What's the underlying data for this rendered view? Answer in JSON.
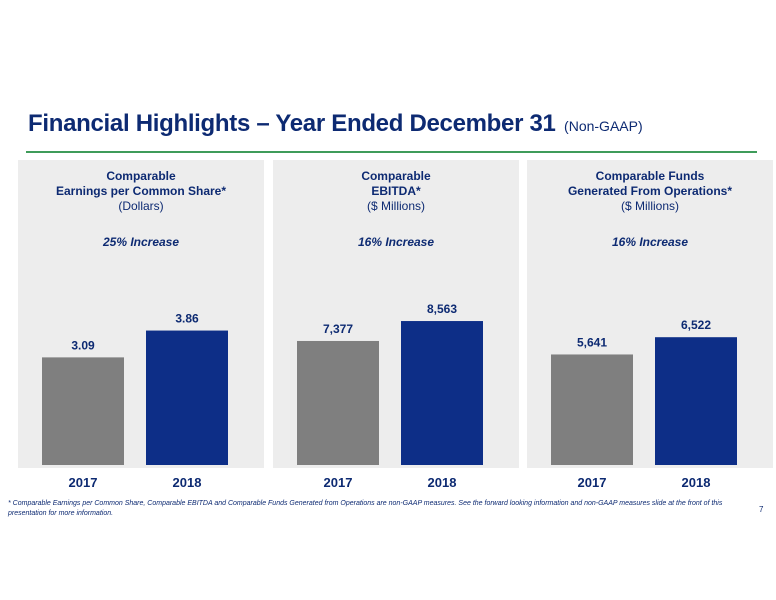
{
  "title": {
    "main": "Financial Highlights – Year Ended December 31",
    "sub": "(Non-GAAP)"
  },
  "colors": {
    "bar_2017": "#7f7f7f",
    "bar_2018": "#0d2e87",
    "text": "#0d2a72",
    "rule": "#3f9c5a",
    "panel_bg": "#ededed"
  },
  "chart_data": [
    {
      "type": "bar",
      "title_lines": [
        "Comparable",
        "Earnings per Common Share*",
        "(Dollars)"
      ],
      "annotation": "25% Increase",
      "categories": [
        "2017",
        "2018"
      ],
      "values": [
        3.09,
        3.86
      ],
      "value_labels": [
        "3.09",
        "3.86"
      ],
      "ylim": [
        0,
        4.45
      ]
    },
    {
      "type": "bar",
      "title_lines": [
        "Comparable",
        "EBITDA*",
        "($ Millions)"
      ],
      "annotation": "16% Increase",
      "categories": [
        "2017",
        "2018"
      ],
      "values": [
        7377,
        8563
      ],
      "value_labels": [
        "7,377",
        "8,563"
      ],
      "ylim": [
        0,
        9220
      ]
    },
    {
      "type": "bar",
      "title_lines": [
        "Comparable  Funds",
        "Generated From Operations*",
        "($ Millions)"
      ],
      "annotation": "16% Increase",
      "categories": [
        "2017",
        "2018"
      ],
      "values": [
        5641,
        6522
      ],
      "value_labels": [
        "5,641",
        "6,522"
      ],
      "ylim": [
        0,
        7910
      ]
    }
  ],
  "footnote": "* Comparable Earnings per Common Share, Comparable EBITDA and Comparable Funds Generated from Operations are non-GAAP measures.  See the forward looking information and non-GAAP measures slide at the front of this presentation for more information.",
  "page_number": "7"
}
